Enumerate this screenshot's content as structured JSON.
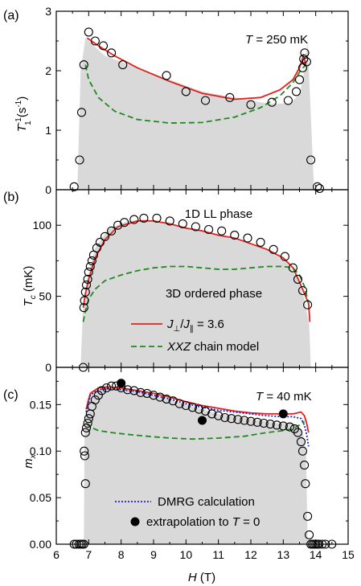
{
  "colors": {
    "fill": "#d9d9d9",
    "red": "#e3201b",
    "green": "#1f8a1f",
    "blue": "#1f1fd6",
    "axis": "#000000"
  },
  "x_axis": {
    "label_H": "H",
    "label_unit": " (T)",
    "range": [
      6,
      15
    ],
    "ticks": [
      "6",
      "7",
      "8",
      "9",
      "10",
      "11",
      "12",
      "13",
      "14",
      "15"
    ]
  },
  "chart_data": [
    {
      "type": "scatter",
      "panel": "(a)",
      "ylabel_main": "T",
      "ylabel_sup": "-1",
      "ylabel_sub": "1",
      "ylabel_unit": " (s",
      "ylabel_unit_sup": "-1",
      "ylabel_close": ")",
      "annotation_T": "T",
      "annotation_rest": " = 250 mK",
      "ylim": [
        0,
        3
      ],
      "yticks": [
        "0",
        "1",
        "2",
        "3"
      ],
      "shaded_region": {
        "x": [
          6.65,
          6.75,
          6.9,
          7.5,
          8.5,
          9.5,
          10.5,
          11.5,
          12.5,
          13.2,
          13.5,
          13.65,
          13.75,
          13.95
        ],
        "y": [
          0,
          2.0,
          2.55,
          2.25,
          2.05,
          1.85,
          1.65,
          1.55,
          1.45,
          1.45,
          1.6,
          2.0,
          2.5,
          0
        ]
      },
      "open_circles": {
        "x": [
          6.55,
          6.72,
          6.78,
          6.85,
          7.0,
          7.2,
          7.45,
          7.7,
          8.05,
          9.4,
          10.0,
          10.6,
          11.35,
          12.0,
          12.65,
          13.15,
          13.4,
          13.5,
          13.6,
          13.63,
          13.66,
          13.72,
          13.85,
          14.05,
          14.12
        ],
        "y": [
          0.05,
          0.5,
          1.3,
          2.1,
          2.65,
          2.5,
          2.42,
          2.3,
          2.1,
          1.92,
          1.65,
          1.5,
          1.55,
          1.43,
          1.47,
          1.5,
          1.65,
          1.85,
          2.05,
          2.2,
          2.3,
          2.15,
          0.5,
          0.05,
          0.02
        ]
      },
      "series": [
        {
          "color": "red",
          "style": "solid",
          "x": [
            6.95,
            7.3,
            7.8,
            8.5,
            9.5,
            10.5,
            11.5,
            12.3,
            12.9,
            13.3,
            13.5,
            13.62,
            13.7
          ],
          "y": [
            2.55,
            2.42,
            2.25,
            2.05,
            1.82,
            1.62,
            1.52,
            1.55,
            1.68,
            1.85,
            2.05,
            2.25,
            2.1
          ]
        },
        {
          "color": "green",
          "style": "dashed",
          "x": [
            6.9,
            7.0,
            7.3,
            7.8,
            8.5,
            9.5,
            10.5,
            11.5,
            12.3,
            12.9,
            13.3,
            13.55,
            13.7
          ],
          "y": [
            2.1,
            1.85,
            1.55,
            1.32,
            1.18,
            1.12,
            1.13,
            1.22,
            1.38,
            1.58,
            1.8,
            2.02,
            2.1
          ]
        }
      ]
    },
    {
      "type": "scatter",
      "panel": "(b)",
      "ylabel_main": "T",
      "ylabel_sub": "c",
      "ylabel_unit": " (mK)",
      "ylim": [
        0,
        125
      ],
      "yticks": [
        "0",
        "50",
        "100"
      ],
      "label_upper": "1D LL phase",
      "label_lower": "3D ordered phase",
      "shaded_region": {
        "x": [
          6.75,
          6.82,
          6.95,
          7.2,
          7.6,
          8.2,
          8.8,
          9.5,
          10.5,
          11.5,
          12.5,
          13.1,
          13.45,
          13.65,
          13.8,
          13.85
        ],
        "y": [
          0,
          40,
          62,
          84,
          97,
          103,
          104,
          101,
          96,
          90,
          83,
          74,
          62,
          48,
          30,
          0
        ]
      },
      "open_circles": {
        "x": [
          6.83,
          6.85,
          6.87,
          6.9,
          6.93,
          6.97,
          7.0,
          7.05,
          7.1,
          7.15,
          7.25,
          7.35,
          7.5,
          7.7,
          7.9,
          8.1,
          8.4,
          8.7,
          9.1,
          9.5,
          9.9,
          10.3,
          10.7,
          11.1,
          11.5,
          11.9,
          12.3,
          12.7,
          13.05,
          13.3,
          13.45,
          13.6,
          13.75
        ],
        "y": [
          0,
          42,
          47,
          53,
          58,
          62,
          67,
          71,
          75,
          79,
          84,
          88,
          92,
          96,
          100,
          102,
          104,
          105,
          105,
          103,
          101,
          99,
          97,
          96,
          93,
          91,
          88,
          83,
          78,
          70,
          62,
          54,
          44
        ]
      },
      "series": [
        {
          "name": "J⊥/J∥ = 3.6",
          "color": "red",
          "style": "solid",
          "x": [
            6.83,
            6.9,
            7.0,
            7.2,
            7.5,
            7.9,
            8.5,
            9.0,
            9.5,
            10.0,
            10.5,
            11.0,
            11.5,
            12.0,
            12.5,
            13.0,
            13.3,
            13.5,
            13.65,
            13.78,
            13.82
          ],
          "y": [
            42,
            52,
            62,
            77,
            90,
            99,
            103,
            103,
            101,
            98,
            96,
            93,
            91,
            87,
            83,
            77,
            70,
            60,
            52,
            45,
            32
          ]
        },
        {
          "name": "XXZ chain model",
          "color": "green",
          "style": "dashed",
          "x": [
            6.83,
            6.9,
            7.0,
            7.2,
            7.5,
            8.0,
            8.5,
            9.0,
            9.5,
            10.0,
            10.5,
            11.0,
            11.5,
            12.0,
            12.5,
            13.0,
            13.3,
            13.5,
            13.65,
            13.78
          ],
          "y": [
            32,
            40,
            48,
            55,
            61,
            65,
            68,
            70,
            71,
            71,
            70,
            69,
            69,
            70,
            71,
            71,
            70,
            65,
            57,
            45
          ]
        }
      ],
      "legend": [
        {
          "line": "red",
          "style": "solid",
          "J": "J",
          "perp": "⊥",
          "slash": "/",
          "J2": "J",
          "par": "∥",
          "rest": " = 3.6"
        },
        {
          "line": "green",
          "style": "dashed",
          "italic": "XXZ",
          "rest": " chain model"
        }
      ]
    },
    {
      "type": "scatter",
      "panel": "(c)",
      "ylabel_main": "m",
      "ylabel_sub": "x",
      "annotation_T": "T",
      "annotation_rest": " = 40 mK",
      "ylim": [
        0,
        0.19
      ],
      "yticks": [
        "0.00",
        "0.05",
        "0.10",
        "0.15"
      ],
      "shaded_region": {
        "x": [
          6.85,
          6.87,
          6.95,
          7.1,
          7.5,
          8.0,
          9.0,
          10.0,
          11.0,
          12.0,
          12.8,
          13.2,
          13.45,
          13.6,
          13.7,
          13.72,
          13.75
        ],
        "y": [
          0,
          0.12,
          0.155,
          0.165,
          0.17,
          0.168,
          0.16,
          0.15,
          0.14,
          0.135,
          0.13,
          0.13,
          0.128,
          0.12,
          0.1,
          0.06,
          0
        ]
      },
      "open_circles": {
        "x": [
          6.55,
          6.62,
          6.7,
          6.75,
          6.8,
          6.85,
          6.9,
          6.88,
          6.86,
          6.9,
          6.93,
          6.97,
          7.0,
          7.05,
          7.1,
          7.2,
          7.3,
          7.4,
          7.55,
          7.7,
          7.85,
          8.0,
          8.2,
          8.4,
          8.6,
          8.8,
          9.0,
          9.2,
          9.4,
          9.6,
          9.8,
          10.0,
          10.2,
          10.4,
          10.6,
          10.8,
          11.0,
          11.2,
          11.4,
          11.6,
          11.8,
          12.0,
          12.2,
          12.4,
          12.6,
          12.8,
          13.0,
          13.2,
          13.35,
          13.45,
          13.55,
          13.6,
          13.65,
          13.68,
          13.75,
          13.8,
          13.85,
          13.9,
          13.95,
          14.0,
          14.05,
          14.1,
          14.2,
          14.3,
          14.5
        ],
        "y": [
          0,
          0,
          0,
          0,
          0,
          0,
          0.065,
          0.095,
          0.1,
          0.12,
          0.125,
          0.13,
          0.135,
          0.14,
          0.148,
          0.155,
          0.16,
          0.165,
          0.168,
          0.17,
          0.17,
          0.168,
          0.166,
          0.165,
          0.163,
          0.162,
          0.16,
          0.158,
          0.156,
          0.154,
          0.151,
          0.149,
          0.147,
          0.145,
          0.143,
          0.14,
          0.138,
          0.136,
          0.135,
          0.134,
          0.133,
          0.132,
          0.131,
          0.13,
          0.129,
          0.128,
          0.127,
          0.126,
          0.124,
          0.12,
          0.11,
          0.1,
          0.085,
          0.065,
          0.03,
          0.01,
          0,
          0,
          0,
          0,
          0,
          0,
          0,
          0,
          0
        ]
      },
      "filled_circles": {
        "name": "extrapolation to T = 0",
        "x": [
          8.0,
          10.5,
          13.0
        ],
        "y": [
          0.173,
          0.133,
          0.14
        ]
      },
      "series": [
        {
          "color": "red",
          "style": "solid",
          "x": [
            6.92,
            7.05,
            7.3,
            7.6,
            8.0,
            8.5,
            9.0,
            9.5,
            10.0,
            10.5,
            11.0,
            11.5,
            12.0,
            12.5,
            13.0,
            13.3,
            13.55,
            13.65,
            13.72,
            13.78
          ],
          "y": [
            0.145,
            0.162,
            0.168,
            0.169,
            0.168,
            0.165,
            0.162,
            0.158,
            0.153,
            0.149,
            0.146,
            0.143,
            0.141,
            0.14,
            0.14,
            0.14,
            0.142,
            0.138,
            0.13,
            0.12
          ]
        },
        {
          "name": "DMRG calculation",
          "color": "blue",
          "style": "dotted",
          "x": [
            6.92,
            7.05,
            7.3,
            7.6,
            8.0,
            8.5,
            9.0,
            9.5,
            10.0,
            10.5,
            11.0,
            11.5,
            12.0,
            12.5,
            13.0,
            13.3,
            13.55,
            13.65,
            13.72,
            13.78
          ],
          "y": [
            0.142,
            0.16,
            0.166,
            0.167,
            0.166,
            0.164,
            0.16,
            0.156,
            0.151,
            0.147,
            0.144,
            0.142,
            0.14,
            0.138,
            0.137,
            0.137,
            0.135,
            0.128,
            0.118,
            0.105
          ]
        },
        {
          "color": "green",
          "style": "dashed",
          "x": [
            6.92,
            7.05,
            7.3,
            7.7,
            8.2,
            8.8,
            9.5,
            10.2,
            11.0,
            11.8,
            12.5,
            13.0,
            13.3,
            13.5,
            13.65
          ],
          "y": [
            0.13,
            0.126,
            0.122,
            0.12,
            0.118,
            0.116,
            0.114,
            0.113,
            0.114,
            0.116,
            0.12,
            0.122,
            0.124,
            0.128,
            0.132
          ]
        }
      ],
      "legend": [
        {
          "line": "blue",
          "style": "dotted",
          "rest": "DMRG calculation"
        },
        {
          "marker": "filled",
          "prefix": "extrapolation to ",
          "italic": "T",
          "rest": " = 0"
        }
      ]
    }
  ]
}
